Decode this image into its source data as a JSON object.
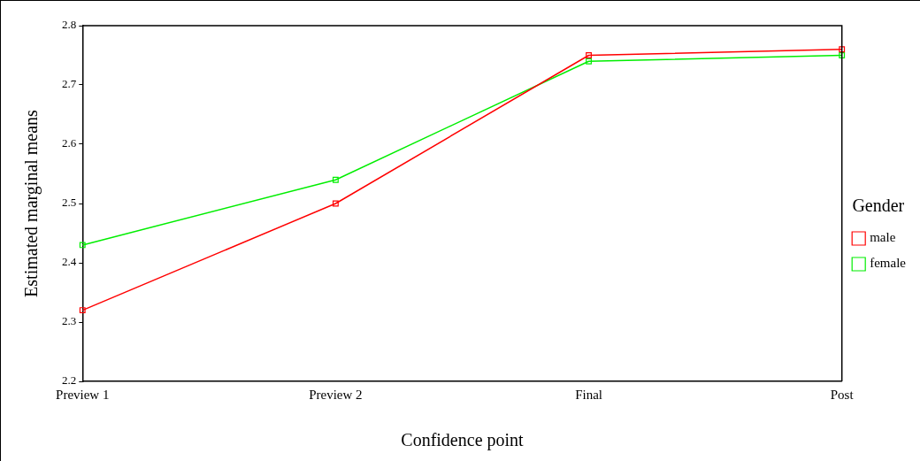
{
  "chart_data": {
    "type": "line",
    "xlabel": "Confidence point",
    "ylabel": "Estimated marginal means",
    "legend_title": "Gender",
    "categories": [
      "Preview 1",
      "Preview 2",
      "Final",
      "Post"
    ],
    "series": [
      {
        "name": "male",
        "color": "#ff0000",
        "values": [
          2.32,
          2.5,
          2.75,
          2.76
        ]
      },
      {
        "name": "female",
        "color": "#00ee00",
        "values": [
          2.43,
          2.54,
          2.74,
          2.75
        ]
      }
    ],
    "ylim": [
      2.2,
      2.8
    ],
    "yticks": [
      2.2,
      2.3,
      2.4,
      2.5,
      2.6,
      2.7,
      2.8
    ],
    "grid": false,
    "legend": "right",
    "marker": "square",
    "line_style": "solid"
  }
}
